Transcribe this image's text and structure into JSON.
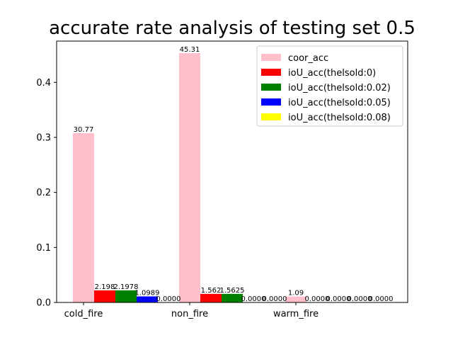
{
  "chart_data": {
    "type": "bar",
    "title": "accurate rate analysis of testing set 0.5",
    "xlabel": "",
    "ylabel": "",
    "categories": [
      "cold_fire",
      "non_fire",
      "warm_fire"
    ],
    "ylim": [
      0,
      0.475
    ],
    "yticks": [
      "0.0",
      "0.1",
      "0.2",
      "0.3",
      "0.4"
    ],
    "grid": false,
    "legend_position": "top-right",
    "series": [
      {
        "name": "coor_acc",
        "color": "#ffc0cb",
        "values": [
          0.3077,
          0.4531,
          0.0109
        ],
        "labels": [
          "30.77",
          "45.31",
          "1.09"
        ]
      },
      {
        "name": "ioU_acc(thelsold:0)",
        "color": "#ff0000",
        "values": [
          0.02198,
          0.01562,
          0.0
        ],
        "labels": [
          "2.198",
          "1.562",
          "0.0000"
        ]
      },
      {
        "name": "ioU_acc(thelsold:0.02)",
        "color": "#008000",
        "values": [
          0.021978,
          0.015625,
          0.0
        ],
        "labels": [
          "2.1978",
          "1.5625",
          "0.0000"
        ]
      },
      {
        "name": "ioU_acc(thelsold:0.05)",
        "color": "#0000ff",
        "values": [
          0.010989,
          0.0,
          0.0
        ],
        "labels": [
          "1.0989",
          "0.0000",
          "0.0000"
        ]
      },
      {
        "name": "ioU_acc(thelsold:0.08)",
        "color": "#ffff00",
        "values": [
          0.0,
          0.0,
          0.0
        ],
        "labels": [
          "0.0000",
          "0.0000",
          "0.0000"
        ]
      }
    ]
  }
}
